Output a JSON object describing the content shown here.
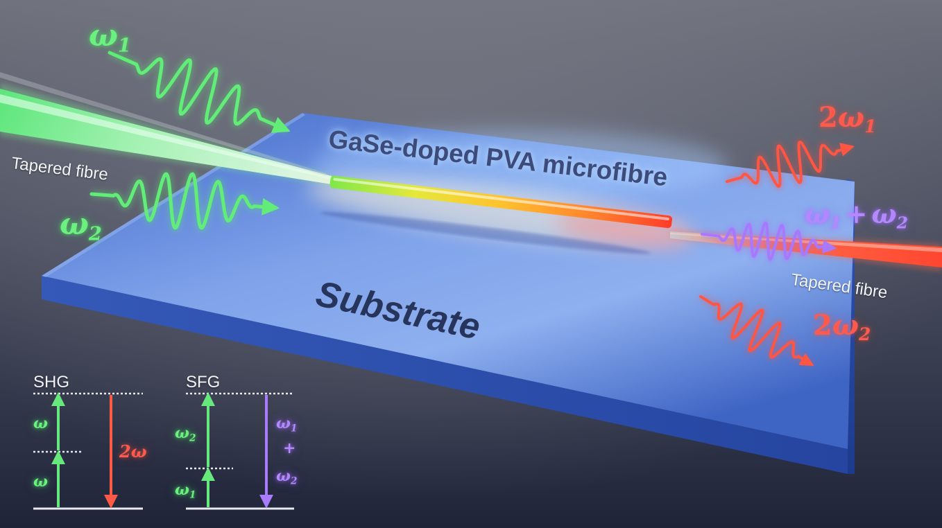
{
  "labels": {
    "tapered_fibre_left": "Tapered fibre",
    "tapered_fibre_right": "Tapered fibre",
    "microfibre": "GaSe-doped PVA microfibre",
    "substrate": "Substrate",
    "omega_symbol": "ω",
    "sub_1": "1",
    "sub_2": "2",
    "two": "2",
    "plus": "+"
  },
  "energy_diagrams": {
    "shg": {
      "title": "SHG",
      "up_label_top": "ω",
      "up_label_bottom": "ω",
      "down_label": "2ω"
    },
    "sfg": {
      "title": "SFG",
      "up_label_top": "ω",
      "up_label_top_sub": "2",
      "up_label_bottom": "ω",
      "up_label_bottom_sub": "1",
      "down_label_top": "ω",
      "down_label_top_sub": "1",
      "down_label_plus": "+",
      "down_label_bottom": "ω",
      "down_label_bottom_sub": "2"
    }
  },
  "colors": {
    "background_top": "#6b6d78",
    "background_bottom": "#232840",
    "substrate_top": "#4f7bd6",
    "substrate_side": "#2c4fa8",
    "pump_green": "#5be872",
    "harmonic_red": "#ff5040",
    "sum_violet": "#a070ff",
    "fibre_left": "#8ef0a0",
    "fibre_right": "#ff6a4a"
  }
}
